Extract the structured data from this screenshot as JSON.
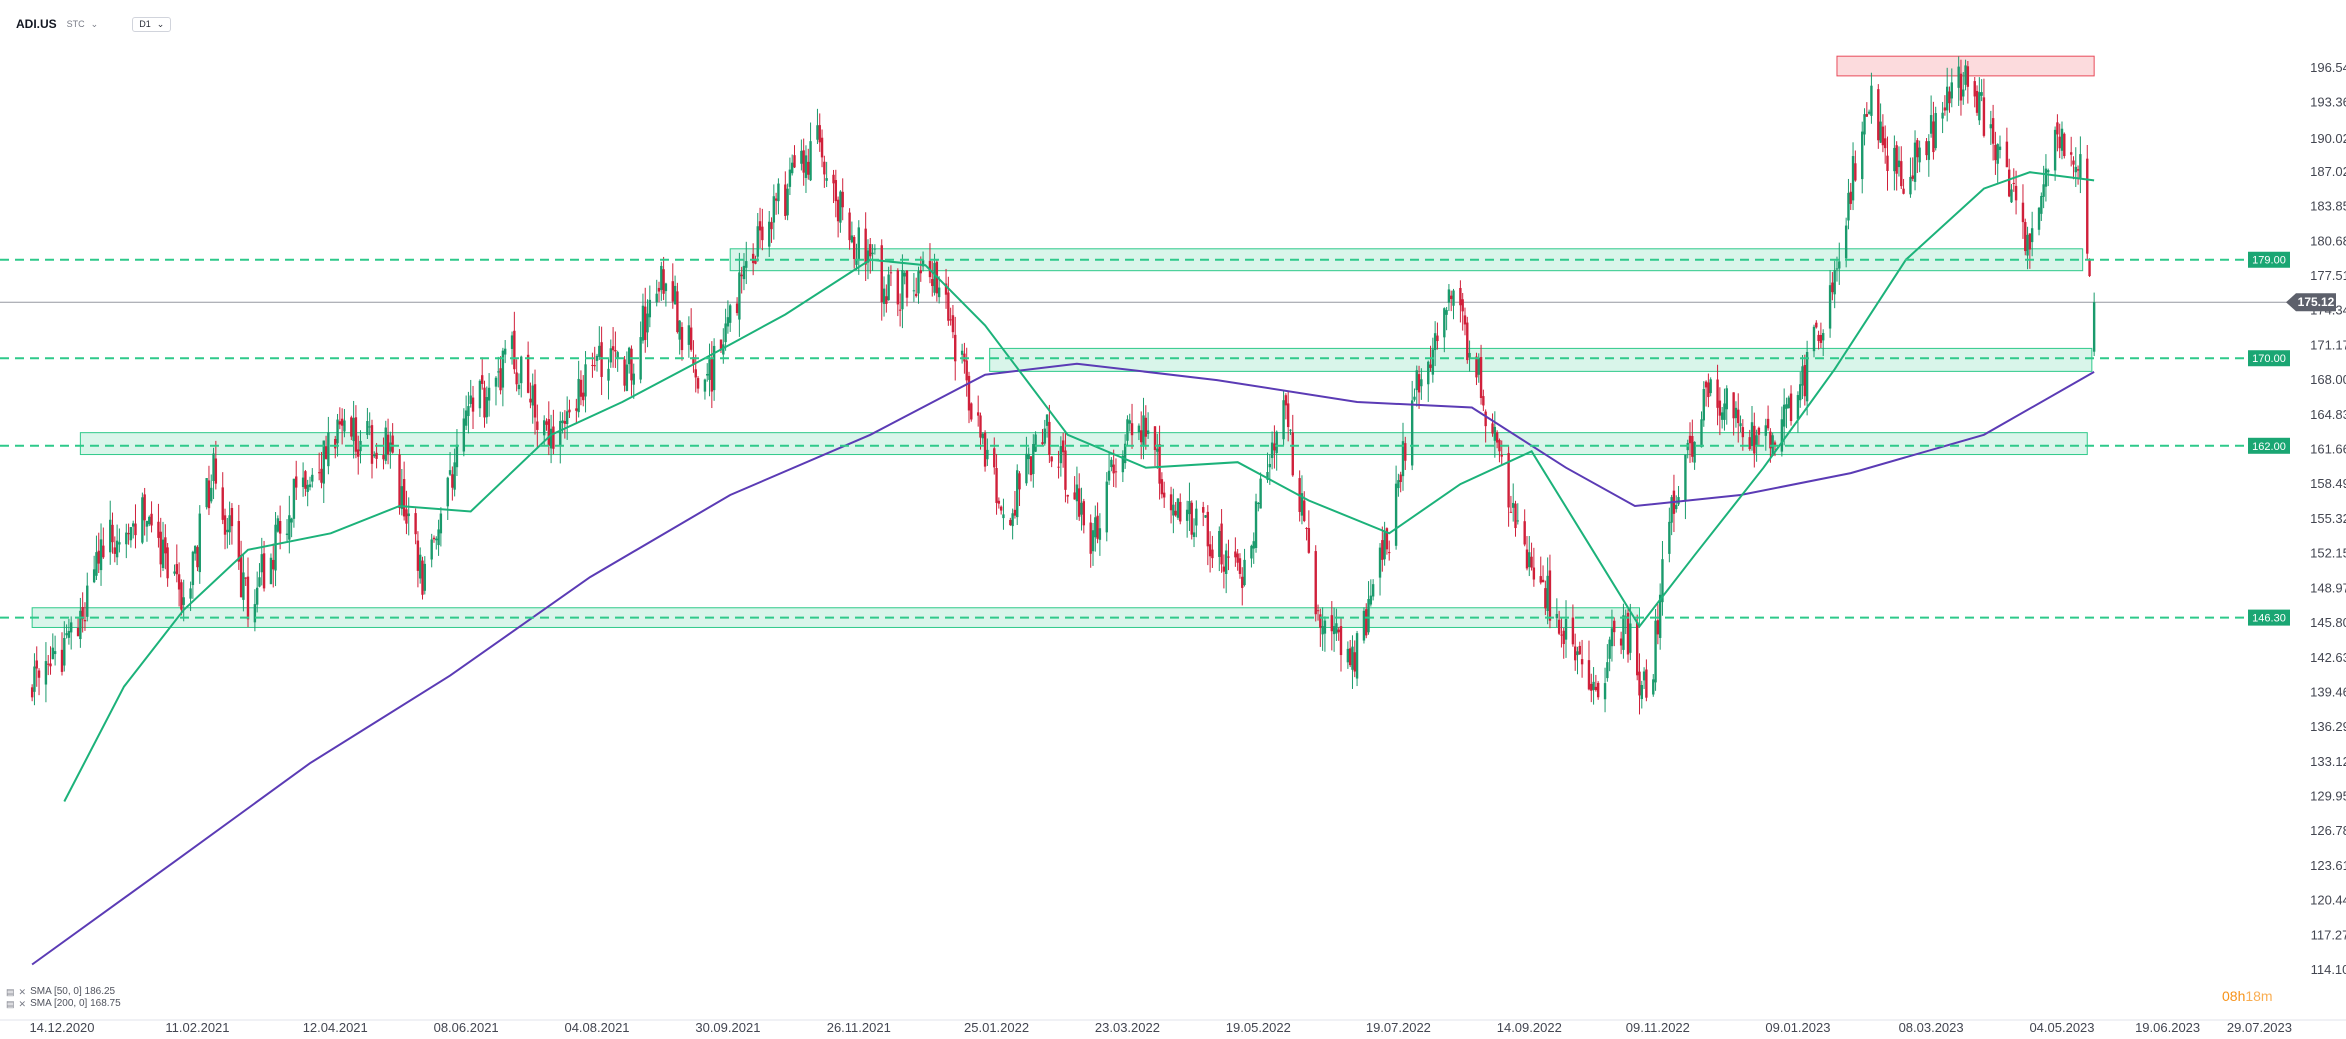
{
  "toolbar": {
    "symbol": "ADI.US",
    "mode": "STC",
    "interval": "D1"
  },
  "indicators": [
    {
      "label": "SMA [50, 0] 186.25",
      "color": "#1cb27a"
    },
    {
      "label": "SMA [200, 0] 168.75",
      "color": "#5b3bb5"
    }
  ],
  "timer": {
    "hours": "08h",
    "minutes": "18m"
  },
  "colors": {
    "up": "#1a9a6c",
    "down": "#d0203a",
    "sma50": "#1cb27a",
    "sma200": "#5b3bb5",
    "zone": "#2ec98a",
    "resistance": "#e84b5a"
  },
  "chart_data": {
    "type": "candlestick",
    "ylim": [
      114.1,
      197.8
    ],
    "y_ticks": [
      "196.54",
      "193.36",
      "190.02",
      "187.02",
      "183.85",
      "180.68",
      "177.51",
      "174.34",
      "171.17",
      "168.00",
      "164.83",
      "161.66",
      "158.49",
      "155.32",
      "152.15",
      "148.97",
      "145.80",
      "142.63",
      "139.46",
      "136.29",
      "133.12",
      "129.95",
      "126.78",
      "123.61",
      "120.44",
      "117.27",
      "114.10"
    ],
    "x_ticks": [
      "14.12.2020",
      "11.02.2021",
      "12.04.2021",
      "08.06.2021",
      "04.08.2021",
      "30.09.2021",
      "26.11.2021",
      "25.01.2022",
      "23.03.2022",
      "19.05.2022",
      "19.07.2022",
      "14.09.2022",
      "09.11.2022",
      "09.01.2023",
      "08.03.2023",
      "04.05.2023",
      "19.06.2023",
      "29.07.2023"
    ],
    "last_price": {
      "value": 175.12,
      "label": "175.12"
    },
    "levels": [
      {
        "value": 179.0,
        "label": "179.00"
      },
      {
        "value": 170.0,
        "label": "170.00"
      },
      {
        "value": 162.0,
        "label": "162.00"
      },
      {
        "value": 146.3,
        "label": "146.30"
      }
    ],
    "zones": [
      {
        "from_date": "2021-10-01",
        "to_date": "2023-05-13",
        "low": 178.0,
        "high": 180.0,
        "kind": "support"
      },
      {
        "from_date": "2022-01-22",
        "to_date": "2023-05-17",
        "low": 168.8,
        "high": 170.9,
        "kind": "support"
      },
      {
        "from_date": "2020-12-22",
        "to_date": "2023-05-15",
        "low": 161.2,
        "high": 163.2,
        "kind": "support"
      },
      {
        "from_date": "2020-12-01",
        "to_date": "2022-11-01",
        "low": 145.4,
        "high": 147.2,
        "kind": "support"
      },
      {
        "from_date": "2023-01-26",
        "to_date": "2023-05-18",
        "low": 195.8,
        "high": 197.6,
        "kind": "resistance"
      }
    ],
    "price_path": [
      [
        "2020-12-01",
        140.0
      ],
      [
        "2020-12-14",
        143.0
      ],
      [
        "2021-01-05",
        154.0
      ],
      [
        "2021-01-20",
        156.5
      ],
      [
        "2021-02-05",
        147.0
      ],
      [
        "2021-02-18",
        160.0
      ],
      [
        "2021-03-05",
        147.5
      ],
      [
        "2021-03-25",
        157.0
      ],
      [
        "2021-04-15",
        163.0
      ],
      [
        "2021-05-05",
        162.0
      ],
      [
        "2021-05-20",
        150.0
      ],
      [
        "2021-06-10",
        165.0
      ],
      [
        "2021-06-28",
        170.0
      ],
      [
        "2021-07-15",
        163.0
      ],
      [
        "2021-08-04",
        170.5
      ],
      [
        "2021-08-18",
        169.0
      ],
      [
        "2021-09-01",
        178.0
      ],
      [
        "2021-09-20",
        167.0
      ],
      [
        "2021-10-10",
        180.0
      ],
      [
        "2021-10-25",
        185.0
      ],
      [
        "2021-11-08",
        189.5
      ],
      [
        "2021-11-20",
        182.0
      ],
      [
        "2021-12-10",
        176.0
      ],
      [
        "2021-12-28",
        178.0
      ],
      [
        "2022-01-12",
        168.0
      ],
      [
        "2022-01-28",
        155.0
      ],
      [
        "2022-02-15",
        164.0
      ],
      [
        "2022-03-08",
        153.0
      ],
      [
        "2022-03-25",
        165.0
      ],
      [
        "2022-04-12",
        157.0
      ],
      [
        "2022-05-12",
        150.0
      ],
      [
        "2022-05-30",
        166.0
      ],
      [
        "2022-06-16",
        145.0
      ],
      [
        "2022-06-30",
        143.0
      ],
      [
        "2022-07-15",
        154.0
      ],
      [
        "2022-07-28",
        168.0
      ],
      [
        "2022-08-12",
        176.0
      ],
      [
        "2022-08-22",
        169.0
      ],
      [
        "2022-09-08",
        155.0
      ],
      [
        "2022-09-25",
        147.0
      ],
      [
        "2022-10-12",
        140.0
      ],
      [
        "2022-10-25",
        146.0
      ],
      [
        "2022-11-05",
        138.0
      ],
      [
        "2022-11-14",
        156.0
      ],
      [
        "2022-12-01",
        168.0
      ],
      [
        "2022-12-12",
        165.0
      ],
      [
        "2022-12-28",
        162.0
      ],
      [
        "2023-01-12",
        168.0
      ],
      [
        "2023-01-26",
        178.0
      ],
      [
        "2023-02-08",
        194.0
      ],
      [
        "2023-02-22",
        186.0
      ],
      [
        "2023-03-10",
        191.0
      ],
      [
        "2023-03-24",
        196.0
      ],
      [
        "2023-04-08",
        187.0
      ],
      [
        "2023-04-20",
        180.0
      ],
      [
        "2023-05-02",
        190.0
      ],
      [
        "2023-05-12",
        187.0
      ],
      [
        "2023-05-18",
        172.0
      ],
      [
        "2023-05-18",
        175.12
      ]
    ],
    "sma50_path": [
      [
        "2020-12-15",
        129.5
      ],
      [
        "2021-01-10",
        140.0
      ],
      [
        "2021-02-05",
        147.0
      ],
      [
        "2021-03-05",
        152.5
      ],
      [
        "2021-04-10",
        154.0
      ],
      [
        "2021-05-10",
        156.5
      ],
      [
        "2021-06-10",
        156.0
      ],
      [
        "2021-07-15",
        163.0
      ],
      [
        "2021-08-15",
        166.0
      ],
      [
        "2021-09-20",
        170.0
      ],
      [
        "2021-10-25",
        174.0
      ],
      [
        "2021-12-01",
        179.0
      ],
      [
        "2021-12-25",
        178.5
      ],
      [
        "2022-01-20",
        173.0
      ],
      [
        "2022-02-25",
        163.0
      ],
      [
        "2022-03-31",
        160.0
      ],
      [
        "2022-05-10",
        160.5
      ],
      [
        "2022-06-10",
        157.0
      ],
      [
        "2022-07-15",
        154.0
      ],
      [
        "2022-08-15",
        158.5
      ],
      [
        "2022-09-15",
        161.5
      ],
      [
        "2022-10-10",
        153.0
      ],
      [
        "2022-11-01",
        145.5
      ],
      [
        "2022-11-25",
        152.0
      ],
      [
        "2022-12-25",
        160.0
      ],
      [
        "2023-01-25",
        169.0
      ],
      [
        "2023-02-25",
        179.0
      ],
      [
        "2023-03-31",
        185.5
      ],
      [
        "2023-04-20",
        187.0
      ],
      [
        "2023-05-18",
        186.25
      ]
    ],
    "sma200_path": [
      [
        "2020-12-01",
        114.6
      ],
      [
        "2021-02-01",
        124.0
      ],
      [
        "2021-04-01",
        133.0
      ],
      [
        "2021-06-01",
        141.0
      ],
      [
        "2021-08-01",
        150.0
      ],
      [
        "2021-10-01",
        157.5
      ],
      [
        "2021-12-01",
        163.0
      ],
      [
        "2022-01-20",
        168.5
      ],
      [
        "2022-03-01",
        169.5
      ],
      [
        "2022-05-01",
        168.0
      ],
      [
        "2022-07-01",
        166.0
      ],
      [
        "2022-08-20",
        165.5
      ],
      [
        "2022-09-30",
        160.0
      ],
      [
        "2022-10-30",
        156.5
      ],
      [
        "2022-12-15",
        157.5
      ],
      [
        "2023-02-01",
        159.5
      ],
      [
        "2023-03-31",
        163.0
      ],
      [
        "2023-05-18",
        168.75
      ]
    ]
  }
}
